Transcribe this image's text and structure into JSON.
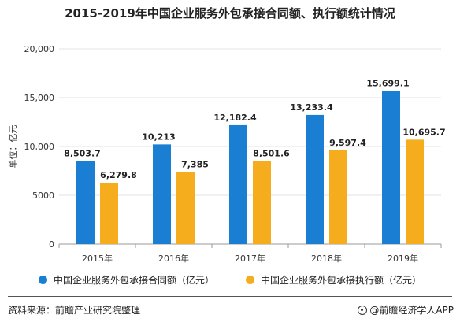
{
  "title": "2015-2019年中国企业服务外包承接合同额、执行额统计情况",
  "source": "资料来源：前瞻产业研究院整理",
  "brand": "@前瞻经济学人APP",
  "colors": {
    "series1": "#1a7fd2",
    "series2": "#f5ad1d",
    "grid": "#e3e3e3",
    "axis": "#999999"
  },
  "chart_data": {
    "type": "bar",
    "title": "2015-2019年中国企业服务外包承接合同额、执行额统计情况",
    "categories": [
      "2015年",
      "2016年",
      "2017年",
      "2018年",
      "2019年"
    ],
    "ylabel": "单位：亿元",
    "ylim": [
      0,
      20000
    ],
    "yticks": [
      0,
      5000,
      10000,
      15000,
      20000
    ],
    "ytick_labels": [
      "0",
      "5000",
      "10,000",
      "15,000",
      "20,000"
    ],
    "grid": true,
    "legend": "bottom",
    "series": [
      {
        "name": "中国企业服务外包承接合同额（亿元）",
        "values": [
          8503.7,
          10213,
          12182.4,
          13233.4,
          15699.1
        ],
        "labels": [
          "8,503.7",
          "10,213",
          "12,182.4",
          "13,233.4",
          "15,699.1"
        ]
      },
      {
        "name": "中国企业服务外包承接执行额（亿元）",
        "values": [
          6279.8,
          7385,
          8501.6,
          9597.4,
          10695.7
        ],
        "labels": [
          "6,279.8",
          "7,385",
          "8,501.6",
          "9,597.4",
          "10,695.7"
        ]
      }
    ]
  }
}
